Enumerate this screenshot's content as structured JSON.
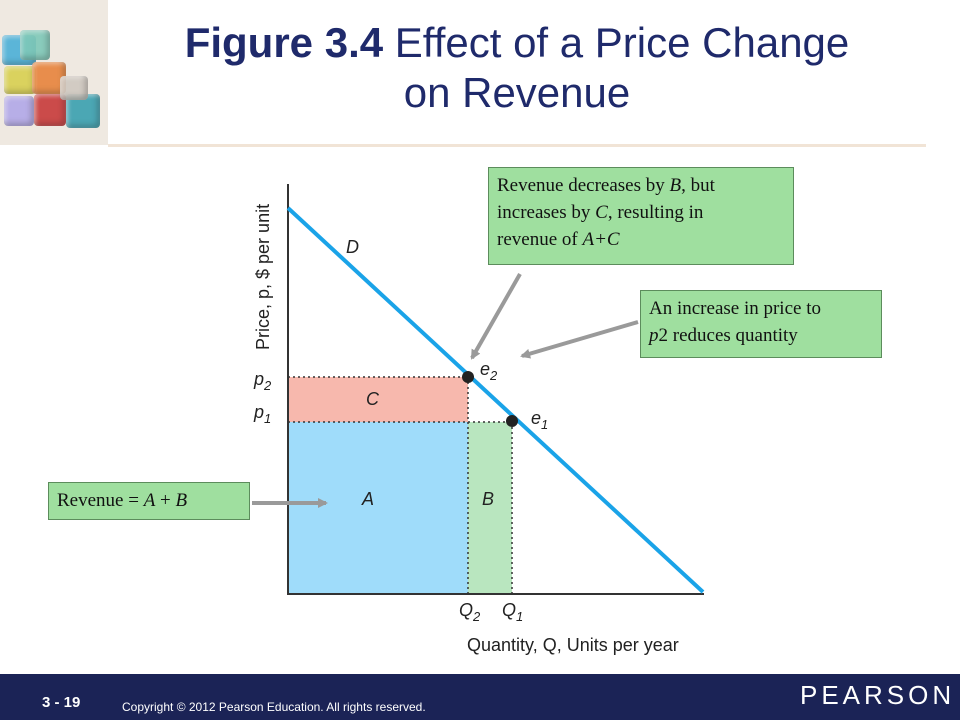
{
  "slide": {
    "title_bold": "Figure 3.4",
    "title_rest_line1": "Effect of a Price Change",
    "title_line2": "on Revenue",
    "page_number": "3 - 19",
    "copyright": "Copyright © 2012  Pearson Education. All rights reserved.",
    "brand": "PEARSON"
  },
  "colors": {
    "demand_line": "#1aa3e8",
    "area_A": "#9fdcfa",
    "area_B": "#b9e6bf",
    "area_C": "#f7b8ad",
    "callout_bg": "#9fdf9f",
    "title": "#1f2a6b",
    "footer": "#1b2356"
  },
  "chart_data": {
    "type": "diagram",
    "ylabel": "Price, p, $ per unit",
    "xlabel": "Quantity, Q, Units per year",
    "demand_label": "D",
    "y_ticks": [
      "p2",
      "p1"
    ],
    "x_ticks": [
      "Q2",
      "Q1"
    ],
    "points": [
      {
        "label": "e2",
        "price": "p2",
        "quantity": "Q2"
      },
      {
        "label": "e1",
        "price": "p1",
        "quantity": "Q1"
      }
    ],
    "areas": [
      {
        "label": "A"
      },
      {
        "label": "B"
      },
      {
        "label": "C"
      }
    ]
  },
  "callouts": {
    "top": {
      "line1": "Revenue decreases by ",
      "b": "B",
      "line1b": ", but",
      "line2a": "increases by ",
      "c": "C",
      "line2b": ", resulting in",
      "line3a": "revenue of ",
      "ac": "A+C"
    },
    "right": {
      "line1": "An increase in price to",
      "p2": "p",
      "p2sub": "2",
      "line2b": " reduces quantity"
    },
    "left": {
      "text_a": "Revenue = ",
      "a": "A",
      "plus": " + ",
      "b": "B"
    }
  }
}
